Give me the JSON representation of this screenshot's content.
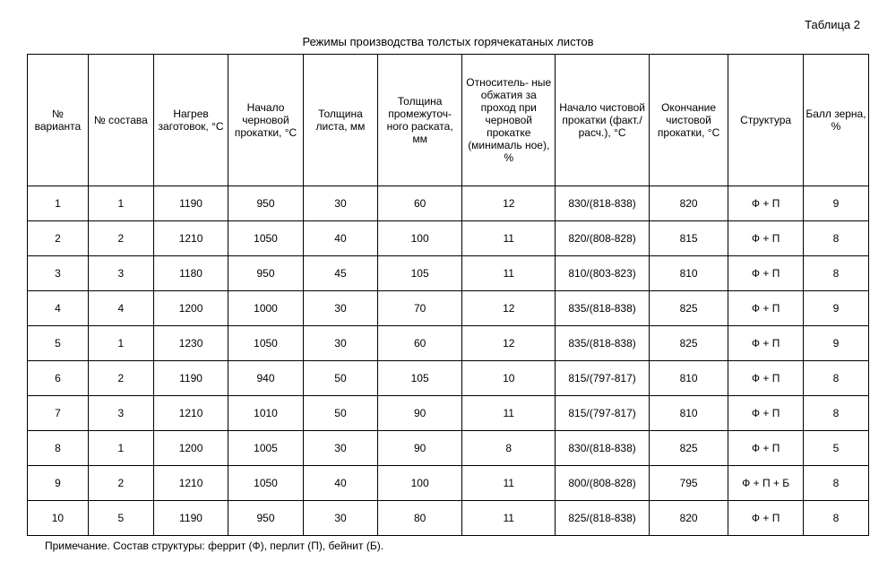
{
  "table_label": "Таблица 2",
  "title": "Режимы производства толстых горячекатаных листов",
  "columns": [
    "№ варианта",
    "№ состава",
    "Нагрев заготовок, °С",
    "Начало черновой прокатки, °С",
    "Толщина листа, мм",
    "Толщина промежуточ- ного раската, мм",
    "Относитель- ные обжатия за проход при черновой прокатке (минималь ное), %",
    "Начало чистовой прокатки (факт./расч.), °С",
    "Окончание чистовой прокатки, °С",
    "Структура",
    "Балл зерна, %"
  ],
  "rows": [
    [
      "1",
      "1",
      "1190",
      "950",
      "30",
      "60",
      "12",
      "830/(818-838)",
      "820",
      "Ф + П",
      "9"
    ],
    [
      "2",
      "2",
      "1210",
      "1050",
      "40",
      "100",
      "11",
      "820/(808-828)",
      "815",
      "Ф + П",
      "8"
    ],
    [
      "3",
      "3",
      "1180",
      "950",
      "45",
      "105",
      "11",
      "810/(803-823)",
      "810",
      "Ф + П",
      "8"
    ],
    [
      "4",
      "4",
      "1200",
      "1000",
      "30",
      "70",
      "12",
      "835/(818-838)",
      "825",
      "Ф + П",
      "9"
    ],
    [
      "5",
      "1",
      "1230",
      "1050",
      "30",
      "60",
      "12",
      "835/(818-838)",
      "825",
      "Ф + П",
      "9"
    ],
    [
      "6",
      "2",
      "1190",
      "940",
      "50",
      "105",
      "10",
      "815/(797-817)",
      "810",
      "Ф + П",
      "8"
    ],
    [
      "7",
      "3",
      "1210",
      "1010",
      "50",
      "90",
      "11",
      "815/(797-817)",
      "810",
      "Ф + П",
      "8"
    ],
    [
      "8",
      "1",
      "1200",
      "1005",
      "30",
      "90",
      "8",
      "830/(818-838)",
      "825",
      "Ф + П",
      "5"
    ],
    [
      "9",
      "2",
      "1210",
      "1050",
      "40",
      "100",
      "11",
      "800/(808-828)",
      "795",
      "Ф + П + Б",
      "8"
    ],
    [
      "10",
      "5",
      "1190",
      "950",
      "30",
      "80",
      "11",
      "825/(818-838)",
      "820",
      "Ф + П",
      "8"
    ]
  ],
  "footnote": "Примечание. Состав структуры: феррит (Ф), перлит (П), бейнит (Б).",
  "style": {
    "background_color": "#ffffff",
    "border_color": "#000000",
    "text_color": "#000000",
    "header_fontsize": 12,
    "cell_fontsize": 12,
    "title_fontsize": 13,
    "column_widths_pct": [
      6.5,
      7,
      8,
      8,
      8,
      9,
      10,
      10,
      8.5,
      8,
      7
    ]
  }
}
